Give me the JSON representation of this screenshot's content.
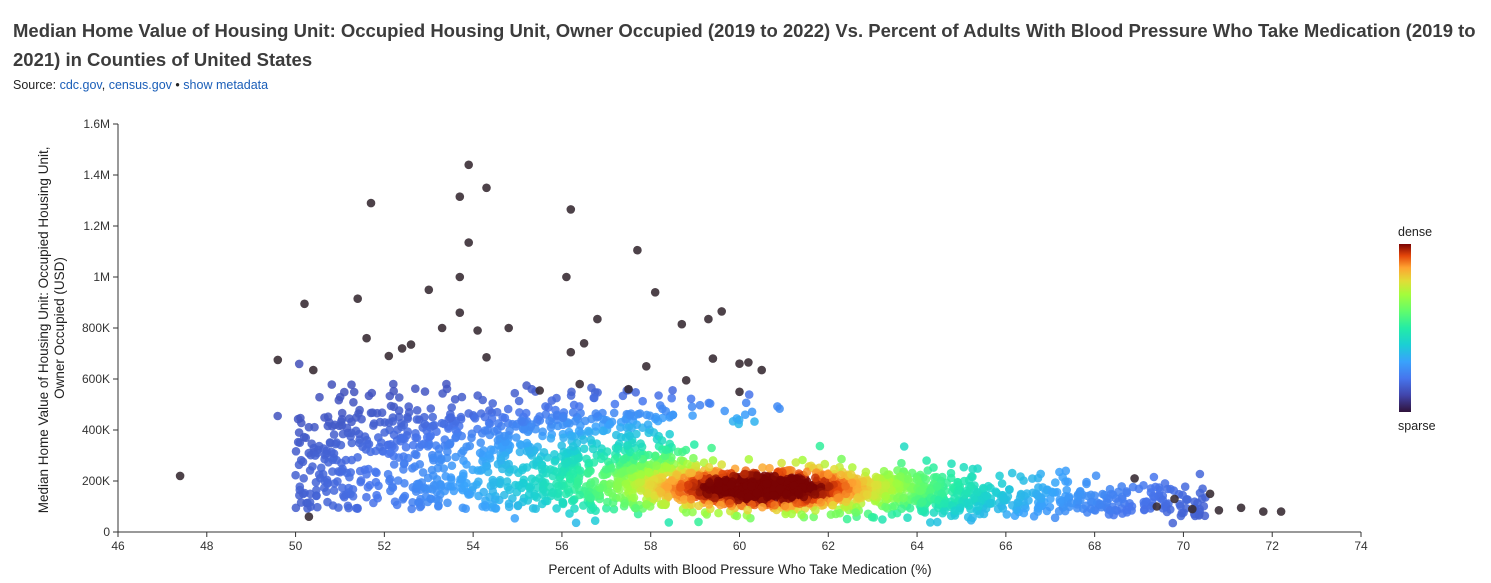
{
  "header": {
    "title": "Median Home Value of Housing Unit: Occupied Housing Unit, Owner Occupied (2019 to 2022) Vs. Percent of Adults With Blood Pressure Who Take Medication (2019 to 2021) in Counties of United States",
    "source_label": "Source:",
    "source_link_1": "cdc.gov",
    "source_sep": ",",
    "source_link_2": "census.gov",
    "source_dot": "•",
    "metadata_link": "show metadata"
  },
  "chart_data": {
    "type": "scatter",
    "xlabel": "Percent of Adults with Blood Pressure Who Take Medication (%)",
    "ylabel_lines": [
      "Median Home Value of Housing Unit: Occupied Housing Unit,",
      "Owner Occupied (USD)"
    ],
    "xlim": [
      46,
      74
    ],
    "ylim": [
      0,
      1600000
    ],
    "x_ticks": [
      46,
      48,
      50,
      52,
      54,
      56,
      58,
      60,
      62,
      64,
      66,
      68,
      70,
      72,
      74
    ],
    "x_tick_labels": [
      "46",
      "48",
      "50",
      "52",
      "54",
      "56",
      "58",
      "60",
      "62",
      "64",
      "66",
      "68",
      "70",
      "72",
      "74"
    ],
    "y_ticks": [
      0,
      200000,
      400000,
      600000,
      800000,
      1000000,
      1200000,
      1400000,
      1600000
    ],
    "y_tick_labels": [
      "0",
      "200K",
      "400K",
      "600K",
      "800K",
      "1M",
      "1.2M",
      "1.4M",
      "1.6M"
    ],
    "grid": false,
    "legend": {
      "placement": "right",
      "top_label": "dense",
      "bottom_label": "sparse",
      "colormap": "turbo"
    },
    "outlier_points": [
      {
        "x": 47.4,
        "y": 220000
      },
      {
        "x": 49.6,
        "y": 675000
      },
      {
        "x": 50.2,
        "y": 895000
      },
      {
        "x": 50.4,
        "y": 635000
      },
      {
        "x": 50.3,
        "y": 60000
      },
      {
        "x": 51.4,
        "y": 915000
      },
      {
        "x": 51.7,
        "y": 1290000
      },
      {
        "x": 51.6,
        "y": 760000
      },
      {
        "x": 52.1,
        "y": 690000
      },
      {
        "x": 52.4,
        "y": 720000
      },
      {
        "x": 52.6,
        "y": 735000
      },
      {
        "x": 53.0,
        "y": 950000
      },
      {
        "x": 53.3,
        "y": 800000
      },
      {
        "x": 53.7,
        "y": 1315000
      },
      {
        "x": 53.9,
        "y": 1440000
      },
      {
        "x": 53.9,
        "y": 1135000
      },
      {
        "x": 53.7,
        "y": 1000000
      },
      {
        "x": 53.7,
        "y": 860000
      },
      {
        "x": 54.1,
        "y": 790000
      },
      {
        "x": 54.3,
        "y": 1350000
      },
      {
        "x": 54.3,
        "y": 685000
      },
      {
        "x": 54.8,
        "y": 800000
      },
      {
        "x": 56.1,
        "y": 1000000
      },
      {
        "x": 56.2,
        "y": 1265000
      },
      {
        "x": 56.2,
        "y": 705000
      },
      {
        "x": 56.5,
        "y": 740000
      },
      {
        "x": 56.8,
        "y": 835000
      },
      {
        "x": 57.7,
        "y": 1105000
      },
      {
        "x": 58.1,
        "y": 940000
      },
      {
        "x": 57.9,
        "y": 650000
      },
      {
        "x": 58.7,
        "y": 815000
      },
      {
        "x": 59.3,
        "y": 835000
      },
      {
        "x": 59.6,
        "y": 865000
      },
      {
        "x": 59.4,
        "y": 680000
      },
      {
        "x": 60.0,
        "y": 660000
      },
      {
        "x": 60.2,
        "y": 665000
      },
      {
        "x": 60.5,
        "y": 635000
      },
      {
        "x": 60.0,
        "y": 550000
      },
      {
        "x": 55.5,
        "y": 555000
      },
      {
        "x": 56.4,
        "y": 580000
      },
      {
        "x": 57.5,
        "y": 560000
      },
      {
        "x": 58.8,
        "y": 595000
      },
      {
        "x": 68.9,
        "y": 210000
      },
      {
        "x": 69.8,
        "y": 130000
      },
      {
        "x": 70.6,
        "y": 150000
      },
      {
        "x": 71.8,
        "y": 80000
      },
      {
        "x": 72.2,
        "y": 80000
      },
      {
        "x": 71.3,
        "y": 95000
      },
      {
        "x": 70.8,
        "y": 85000
      },
      {
        "x": 70.2,
        "y": 90000
      },
      {
        "x": 69.4,
        "y": 100000
      }
    ]
  }
}
